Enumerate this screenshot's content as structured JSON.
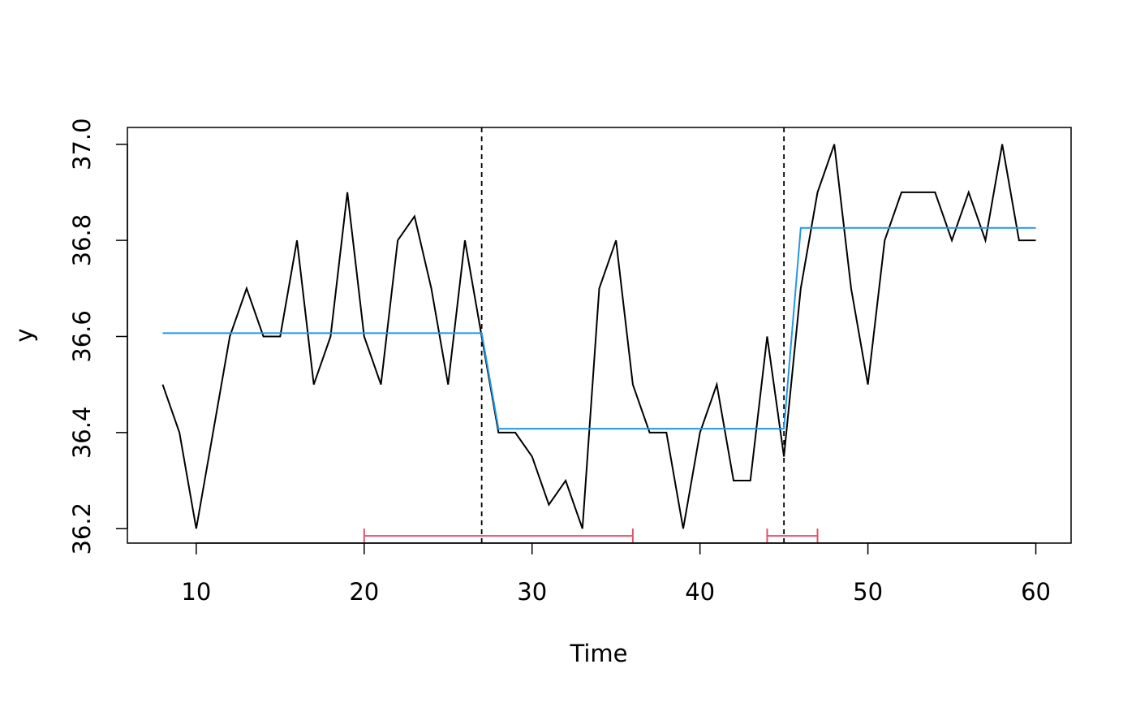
{
  "chart_data": {
    "type": "line",
    "xlabel": "Time",
    "ylabel": "y",
    "xlim": [
      5.9,
      62.1
    ],
    "ylim": [
      36.17,
      37.035
    ],
    "xticks": [
      "10",
      "20",
      "30",
      "40",
      "50",
      "60"
    ],
    "yticks": [
      "36.2",
      "36.4",
      "36.6",
      "36.8",
      "37.0"
    ],
    "grid": false,
    "series": [
      {
        "x": [
          8,
          9,
          10,
          11,
          12,
          13,
          14,
          15,
          16,
          17,
          18,
          19,
          20,
          21,
          22,
          23,
          24,
          25,
          26,
          27,
          28,
          29,
          30,
          31,
          32,
          33,
          34,
          35,
          36,
          37,
          38,
          39,
          40,
          41,
          42,
          43,
          44,
          45,
          46,
          47,
          48,
          49,
          50,
          51,
          52,
          53,
          54,
          55,
          56,
          57,
          58,
          59,
          60
        ],
        "values": [
          36.5,
          36.4,
          36.2,
          36.4,
          36.6,
          36.7,
          36.6,
          36.6,
          36.8,
          36.5,
          36.6,
          36.9,
          36.6,
          36.5,
          36.8,
          36.85,
          36.7,
          36.5,
          36.8,
          36.6,
          36.4,
          36.4,
          36.35,
          36.25,
          36.3,
          36.2,
          36.7,
          36.8,
          36.5,
          36.4,
          36.4,
          36.2,
          36.4,
          36.5,
          36.3,
          36.3,
          36.6,
          36.35,
          36.7,
          36.9,
          37.0,
          36.7,
          36.5,
          36.8,
          36.9,
          36.9,
          36.9,
          36.8,
          36.9,
          36.8,
          37.0,
          36.8,
          36.8
        ],
        "color": "#000000"
      },
      {
        "x": [
          8,
          27,
          28,
          45,
          46,
          60
        ],
        "values": [
          36.607,
          36.607,
          36.408,
          36.408,
          36.826,
          36.826
        ],
        "color": "#2297E6"
      }
    ],
    "breakpoints": [
      27,
      45
    ],
    "confidence_intervals": [
      {
        "start": 20,
        "end": 36,
        "y": 36.185
      },
      {
        "start": 44,
        "end": 47,
        "y": 36.185
      }
    ],
    "colors": {
      "data_line": "#000000",
      "fitted_line": "#2297E6",
      "breakpoint_line": "#000000",
      "confidence_interval": "#DF536B"
    }
  }
}
